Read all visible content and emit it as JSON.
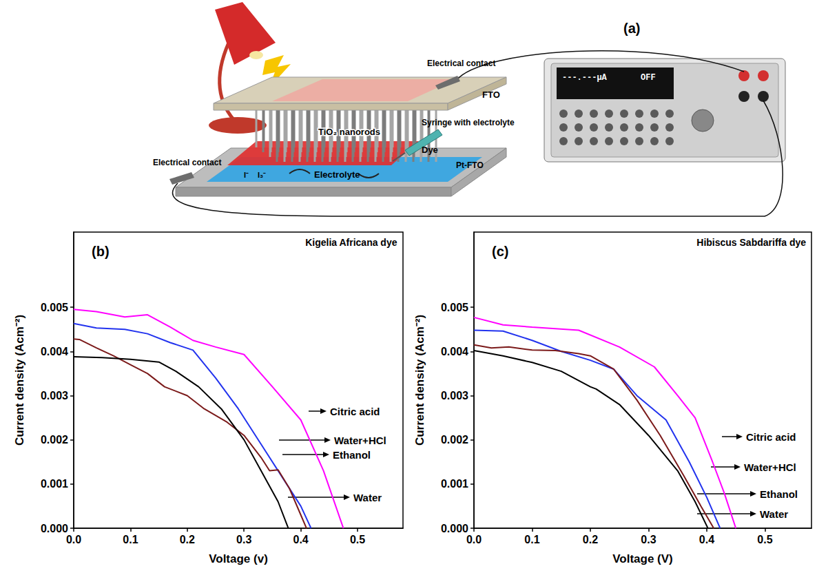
{
  "diagram": {
    "label": "(a)",
    "texts": {
      "top_contact": "Electrical contact",
      "bottom_contact": "Electrical contact",
      "fto": "FTO",
      "nanorods": "TiO₂ nanorods",
      "dye": "Dye",
      "syringe": "Syringe with electrolyte",
      "electrolyte": "Electrolyte",
      "counter": "Pt-FTO",
      "ions": [
        "I⁻",
        "I₃⁻"
      ],
      "meter_screen": [
        "---.---µA",
        "OFF"
      ]
    }
  },
  "chart_data": [
    {
      "type": "line",
      "panel_label": "(b)",
      "title": "Kigelia Africana dye",
      "x_label": "Voltage (v)",
      "y_label": "Current density (Acm⁻²)",
      "xlim": [
        0,
        0.58
      ],
      "xticks": [
        {
          "value": 0,
          "label": "0.0"
        },
        0.1,
        0.2,
        0.3,
        0.4,
        0.5
      ],
      "ylim": [
        0,
        0.0067
      ],
      "yticks": [
        {
          "value": 0,
          "label": "0.000"
        },
        0.001,
        0.002,
        0.003,
        0.004,
        0.005
      ],
      "grid": false,
      "series": [
        {
          "name": "Citric acid",
          "color": "#ff00ff",
          "x": [
            0,
            0.04,
            0.09,
            0.13,
            0.17,
            0.21,
            0.25,
            0.3,
            0.35,
            0.4,
            0.44,
            0.475
          ],
          "values": [
            0.00495,
            0.0049,
            0.00478,
            0.00483,
            0.00455,
            0.00425,
            0.0041,
            0.00393,
            0.0032,
            0.00245,
            0.0013,
            0
          ]
        },
        {
          "name": "Water+HCl",
          "color": "#2233ee",
          "x": [
            0,
            0.04,
            0.09,
            0.13,
            0.17,
            0.21,
            0.25,
            0.29,
            0.33,
            0.37,
            0.4,
            0.418
          ],
          "values": [
            0.00463,
            0.00453,
            0.0045,
            0.0044,
            0.0042,
            0.00403,
            0.0034,
            0.0027,
            0.0019,
            0.0011,
            0.0005,
            0
          ]
        },
        {
          "name": "Ethanol",
          "color": "#7b1a1a",
          "x": [
            0,
            0.01,
            0.04,
            0.07,
            0.1,
            0.13,
            0.16,
            0.2,
            0.23,
            0.27,
            0.3,
            0.33,
            0.345,
            0.36,
            0.38,
            0.4,
            0.41
          ],
          "values": [
            0.00428,
            0.00427,
            0.00408,
            0.0039,
            0.0037,
            0.0035,
            0.0032,
            0.003,
            0.0027,
            0.0024,
            0.0021,
            0.0016,
            0.0013,
            0.00132,
            0.0009,
            0.0003,
            0
          ]
        },
        {
          "name": "Water",
          "color": "#000000",
          "x": [
            0,
            0.05,
            0.1,
            0.15,
            0.18,
            0.22,
            0.26,
            0.3,
            0.33,
            0.36,
            0.378
          ],
          "values": [
            0.00388,
            0.00386,
            0.00382,
            0.00376,
            0.00355,
            0.0032,
            0.0027,
            0.002,
            0.0013,
            0.0006,
            0
          ]
        }
      ]
    },
    {
      "type": "line",
      "panel_label": "(c)",
      "title": "Hibiscus Sabdariffa dye",
      "x_label": "Voltage (V)",
      "y_label": "Current density (Acm⁻²)",
      "xlim": [
        0,
        0.58
      ],
      "xticks": [
        {
          "value": 0,
          "label": "0.0"
        },
        0.1,
        0.2,
        0.3,
        0.4,
        0.5
      ],
      "ylim": [
        0,
        0.0067
      ],
      "yticks": [
        {
          "value": 0,
          "label": "0.000"
        },
        0.001,
        0.002,
        0.003,
        0.004,
        0.005
      ],
      "grid": false,
      "series": [
        {
          "name": "Citric acid",
          "color": "#ff00ff",
          "x": [
            0,
            0.05,
            0.1,
            0.18,
            0.25,
            0.31,
            0.35,
            0.38,
            0.41,
            0.43,
            0.45
          ],
          "values": [
            0.00477,
            0.0046,
            0.00455,
            0.00448,
            0.0041,
            0.00365,
            0.003,
            0.0025,
            0.0015,
            0.0008,
            0
          ]
        },
        {
          "name": "Water+HCl",
          "color": "#2233ee",
          "x": [
            0,
            0.05,
            0.1,
            0.15,
            0.2,
            0.24,
            0.28,
            0.33,
            0.37,
            0.4,
            0.423
          ],
          "values": [
            0.00448,
            0.00446,
            0.00425,
            0.004,
            0.0038,
            0.0036,
            0.003,
            0.00245,
            0.0015,
            0.0007,
            0
          ]
        },
        {
          "name": "Ethanol",
          "color": "#7b1a1a",
          "x": [
            0,
            0.03,
            0.06,
            0.1,
            0.14,
            0.18,
            0.2,
            0.24,
            0.28,
            0.32,
            0.36,
            0.39,
            0.412
          ],
          "values": [
            0.00415,
            0.00408,
            0.0041,
            0.00403,
            0.00402,
            0.00395,
            0.0039,
            0.0036,
            0.0029,
            0.0021,
            0.0012,
            0.0005,
            0
          ]
        },
        {
          "name": "Water",
          "color": "#000000",
          "x": [
            0,
            0.05,
            0.1,
            0.15,
            0.2,
            0.21,
            0.25,
            0.3,
            0.35,
            0.38,
            0.402
          ],
          "values": [
            0.00402,
            0.0039,
            0.00375,
            0.00355,
            0.0032,
            0.00315,
            0.0028,
            0.0021,
            0.0013,
            0.0006,
            0
          ]
        }
      ]
    }
  ]
}
